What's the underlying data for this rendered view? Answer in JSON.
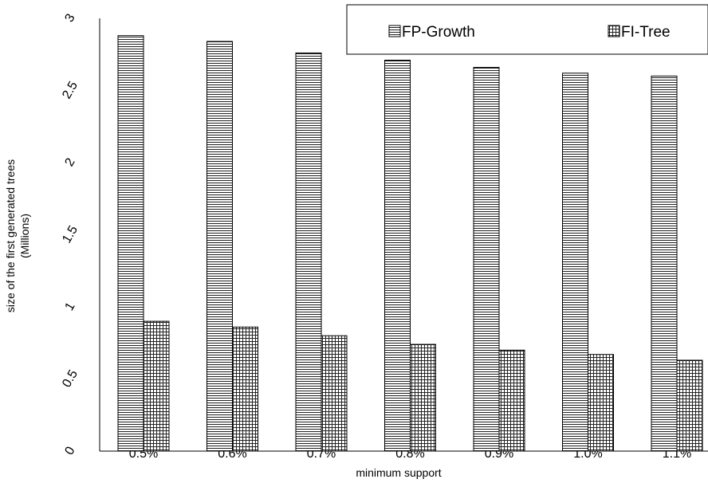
{
  "chart_data": {
    "type": "bar",
    "categories": [
      "0.5%",
      "0.6%",
      "0.7%",
      "0.8%",
      "0.9%",
      "1.0%",
      "1.1%"
    ],
    "series": [
      {
        "name": "FP-Growth",
        "values": [
          2.88,
          2.84,
          2.76,
          2.71,
          2.66,
          2.62,
          2.6
        ]
      },
      {
        "name": "FI-Tree",
        "values": [
          0.9,
          0.86,
          0.8,
          0.74,
          0.7,
          0.67,
          0.63
        ]
      }
    ],
    "yticks": [
      "0",
      "0.5",
      "1",
      "1.5",
      "2",
      "2.5",
      "3"
    ],
    "ylim": [
      0,
      3
    ],
    "xlabel": "minimum support",
    "ylabel": [
      "size of the first generated trees",
      "(Millions)"
    ],
    "title": "",
    "grid": false,
    "legend_position": "top-right",
    "series_patterns": [
      "horizontal-lines",
      "grid-lines"
    ]
  }
}
